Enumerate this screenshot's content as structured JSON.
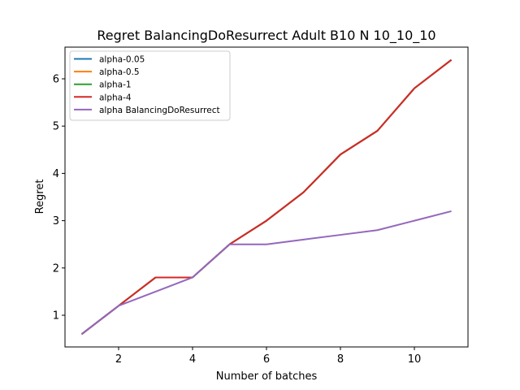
{
  "chart_data": {
    "type": "line",
    "title": "Regret BalancingDoResurrect Adult B10 N 10_10_10",
    "xlabel": "Number of batches",
    "ylabel": "Regret",
    "xlim": [
      0.55,
      11.45
    ],
    "ylim": [
      0.33,
      6.67
    ],
    "xticks": [
      2,
      4,
      6,
      8,
      10
    ],
    "yticks": [
      1,
      2,
      3,
      4,
      5,
      6
    ],
    "grid": false,
    "legend_position": "top-left",
    "x": [
      1,
      2,
      3,
      4,
      5,
      6,
      7,
      8,
      9,
      10,
      11
    ],
    "series": [
      {
        "name": "alpha-0.05",
        "color": "#1f77b4",
        "values": [
          0.6,
          1.2,
          1.8,
          1.8,
          2.5,
          3.0,
          3.6,
          4.4,
          4.9,
          5.8,
          6.4
        ]
      },
      {
        "name": "alpha-0.5",
        "color": "#ff7f0e",
        "values": [
          0.6,
          1.2,
          1.8,
          1.8,
          2.5,
          3.0,
          3.6,
          4.4,
          4.9,
          5.8,
          6.4
        ]
      },
      {
        "name": "alpha-1",
        "color": "#2ca02c",
        "values": [
          0.6,
          1.2,
          1.8,
          1.8,
          2.5,
          3.0,
          3.6,
          4.4,
          4.9,
          5.8,
          6.4
        ]
      },
      {
        "name": "alpha-4",
        "color": "#d62728",
        "values": [
          0.6,
          1.2,
          1.8,
          1.8,
          2.5,
          3.0,
          3.6,
          4.4,
          4.9,
          5.8,
          6.4
        ]
      },
      {
        "name": "alpha BalancingDoResurrect",
        "color": "#9467bd",
        "values": [
          0.6,
          1.2,
          1.5,
          1.8,
          2.5,
          2.5,
          2.6,
          2.7,
          2.8,
          3.0,
          3.2
        ]
      }
    ]
  }
}
